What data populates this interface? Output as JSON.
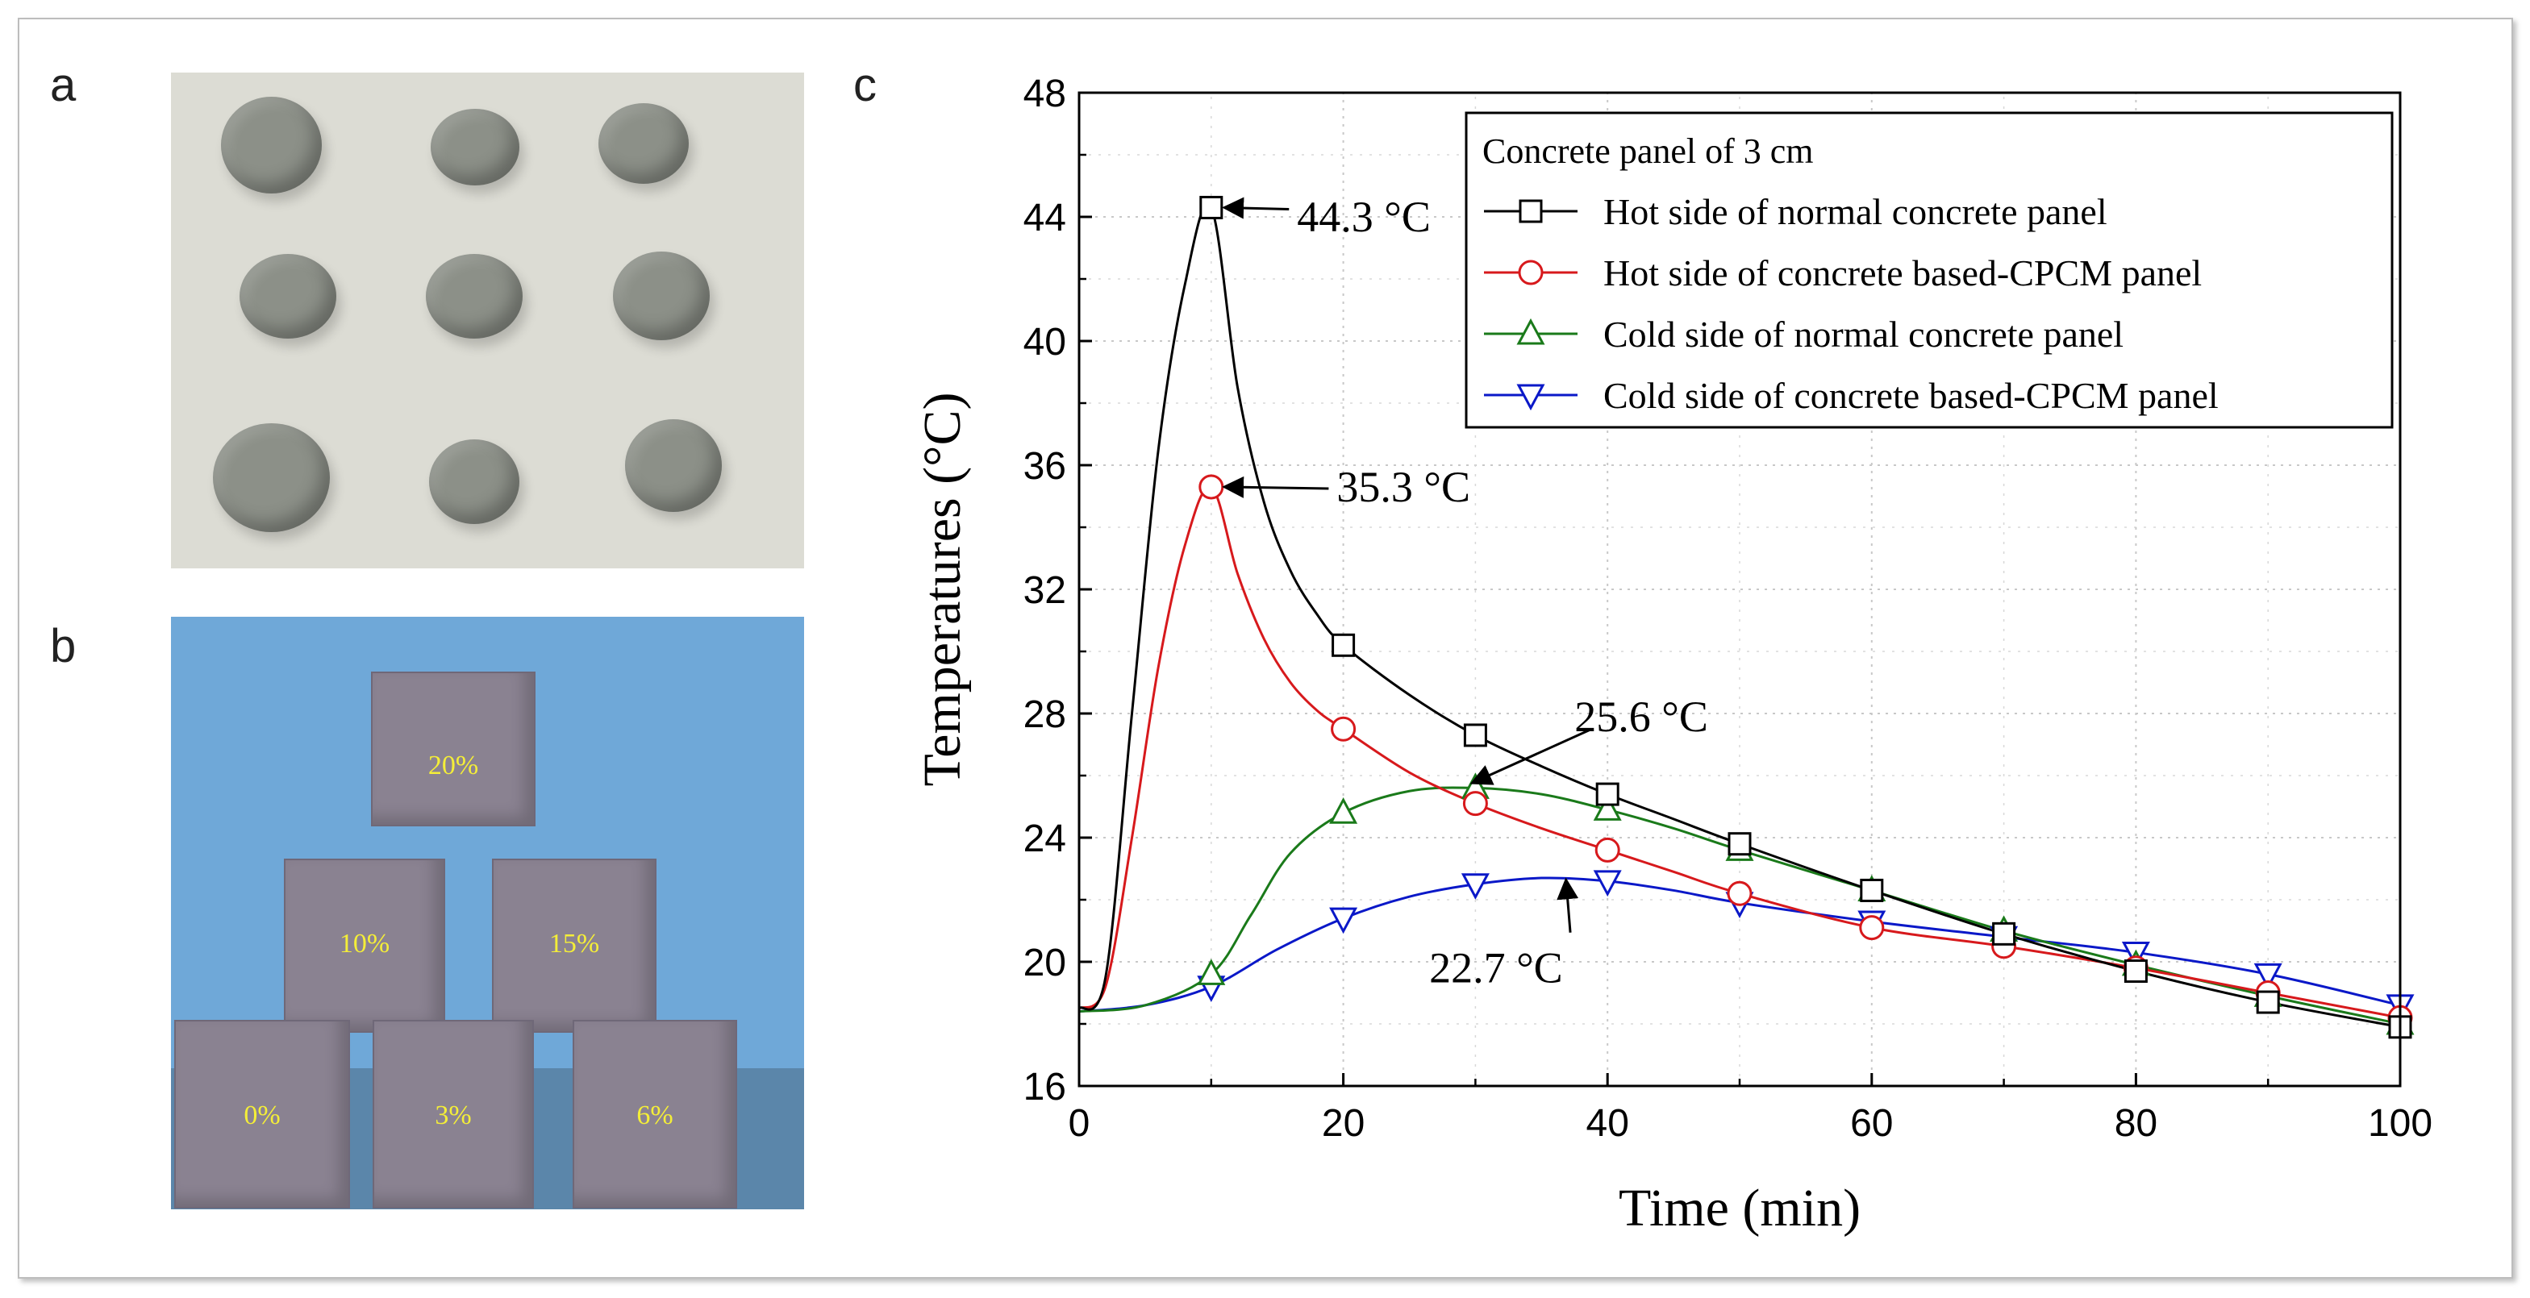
{
  "panels": {
    "a": {
      "letter": "a"
    },
    "b": {
      "letter": "b",
      "cube_labels": [
        "20%",
        "10%",
        "15%",
        "0%",
        "3%",
        "6%"
      ]
    },
    "c": {
      "letter": "c"
    }
  },
  "chart_data": {
    "type": "line",
    "title": "",
    "xlabel": "Time (min)",
    "ylabel": "Temperatures (°C)",
    "xlim": [
      0,
      100
    ],
    "ylim": [
      16,
      48
    ],
    "x_ticks": [
      0,
      20,
      40,
      60,
      80,
      100
    ],
    "y_ticks": [
      16,
      20,
      24,
      28,
      32,
      36,
      40,
      44,
      48
    ],
    "legend": {
      "title": "Concrete panel of 3 cm",
      "placement": "top-right"
    },
    "series": [
      {
        "name": "Hot side of normal concrete panel",
        "color": "#000000",
        "marker": "square",
        "markers": [
          [
            10,
            44.3
          ],
          [
            20,
            30.2
          ],
          [
            30,
            27.3
          ],
          [
            40,
            25.4
          ],
          [
            50,
            23.8
          ],
          [
            60,
            22.3
          ],
          [
            70,
            20.9
          ],
          [
            80,
            19.7
          ],
          [
            90,
            18.7
          ],
          [
            100,
            17.9
          ]
        ],
        "curve": [
          [
            0,
            18.5
          ],
          [
            2,
            19.5
          ],
          [
            4,
            28
          ],
          [
            6,
            36.5
          ],
          [
            8,
            41.8
          ],
          [
            10,
            44.3
          ],
          [
            12,
            38.5
          ],
          [
            14,
            34.8
          ],
          [
            16,
            32.6
          ],
          [
            18,
            31.2
          ],
          [
            20,
            30.2
          ],
          [
            25,
            28.6
          ],
          [
            30,
            27.3
          ],
          [
            35,
            26.3
          ],
          [
            40,
            25.4
          ],
          [
            45,
            24.6
          ],
          [
            50,
            23.8
          ],
          [
            60,
            22.3
          ],
          [
            70,
            20.9
          ],
          [
            80,
            19.7
          ],
          [
            90,
            18.7
          ],
          [
            100,
            17.9
          ]
        ]
      },
      {
        "name": "Hot side of concrete based-CPCM panel",
        "color": "#d7191c",
        "marker": "circle",
        "markers": [
          [
            10,
            35.3
          ],
          [
            20,
            27.5
          ],
          [
            30,
            25.1
          ],
          [
            40,
            23.6
          ],
          [
            50,
            22.2
          ],
          [
            60,
            21.1
          ],
          [
            70,
            20.5
          ],
          [
            80,
            19.8
          ],
          [
            90,
            19.0
          ],
          [
            100,
            18.2
          ]
        ],
        "curve": [
          [
            0,
            18.5
          ],
          [
            2,
            19.2
          ],
          [
            4,
            24
          ],
          [
            6,
            29.5
          ],
          [
            8,
            33.4
          ],
          [
            10,
            35.3
          ],
          [
            12,
            32.5
          ],
          [
            14,
            30.4
          ],
          [
            16,
            29.0
          ],
          [
            18,
            28.1
          ],
          [
            20,
            27.5
          ],
          [
            25,
            26.1
          ],
          [
            30,
            25.1
          ],
          [
            35,
            24.3
          ],
          [
            40,
            23.6
          ],
          [
            45,
            22.9
          ],
          [
            50,
            22.2
          ],
          [
            60,
            21.1
          ],
          [
            70,
            20.5
          ],
          [
            80,
            19.8
          ],
          [
            90,
            19.0
          ],
          [
            100,
            18.2
          ]
        ]
      },
      {
        "name": "Cold side of normal concrete panel",
        "color": "#1a7a1a",
        "marker": "triangle-up",
        "markers": [
          [
            10,
            19.6
          ],
          [
            20,
            24.8
          ],
          [
            30,
            25.6
          ],
          [
            40,
            24.9
          ],
          [
            50,
            23.6
          ],
          [
            60,
            22.3
          ],
          [
            70,
            21.0
          ],
          [
            80,
            19.9
          ],
          [
            90,
            18.9
          ],
          [
            100,
            18.0
          ]
        ],
        "curve": [
          [
            0,
            18.4
          ],
          [
            5,
            18.6
          ],
          [
            10,
            19.6
          ],
          [
            13,
            21.5
          ],
          [
            16,
            23.5
          ],
          [
            20,
            24.8
          ],
          [
            25,
            25.5
          ],
          [
            30,
            25.6
          ],
          [
            35,
            25.4
          ],
          [
            40,
            24.9
          ],
          [
            45,
            24.3
          ],
          [
            50,
            23.6
          ],
          [
            60,
            22.3
          ],
          [
            70,
            21.0
          ],
          [
            80,
            19.9
          ],
          [
            90,
            18.9
          ],
          [
            100,
            18.0
          ]
        ]
      },
      {
        "name": "Cold side of concrete based-CPCM panel",
        "color": "#0a18c8",
        "marker": "triangle-down",
        "markers": [
          [
            10,
            19.2
          ],
          [
            20,
            21.4
          ],
          [
            30,
            22.5
          ],
          [
            40,
            22.6
          ],
          [
            50,
            21.9
          ],
          [
            60,
            21.3
          ],
          [
            70,
            20.8
          ],
          [
            80,
            20.3
          ],
          [
            90,
            19.6
          ],
          [
            100,
            18.6
          ]
        ],
        "curve": [
          [
            0,
            18.4
          ],
          [
            5,
            18.6
          ],
          [
            10,
            19.2
          ],
          [
            15,
            20.4
          ],
          [
            20,
            21.4
          ],
          [
            25,
            22.1
          ],
          [
            30,
            22.5
          ],
          [
            35,
            22.7
          ],
          [
            40,
            22.6
          ],
          [
            45,
            22.3
          ],
          [
            50,
            21.9
          ],
          [
            60,
            21.3
          ],
          [
            70,
            20.8
          ],
          [
            80,
            20.3
          ],
          [
            90,
            19.6
          ],
          [
            100,
            18.6
          ]
        ]
      }
    ],
    "annotations": [
      {
        "text": "44.3 °C",
        "point": [
          10,
          44.3
        ],
        "text_at": [
          16.5,
          44.0
        ]
      },
      {
        "text": "35.3 °C",
        "point": [
          10,
          35.3
        ],
        "text_at": [
          19.5,
          35.3
        ]
      },
      {
        "text": "25.6 °C",
        "point": [
          29,
          25.6
        ],
        "text_at": [
          37.5,
          27.9
        ]
      },
      {
        "text": "22.7 °C",
        "point": [
          36,
          22.7
        ],
        "text_at": [
          26.5,
          19.8
        ]
      }
    ]
  }
}
